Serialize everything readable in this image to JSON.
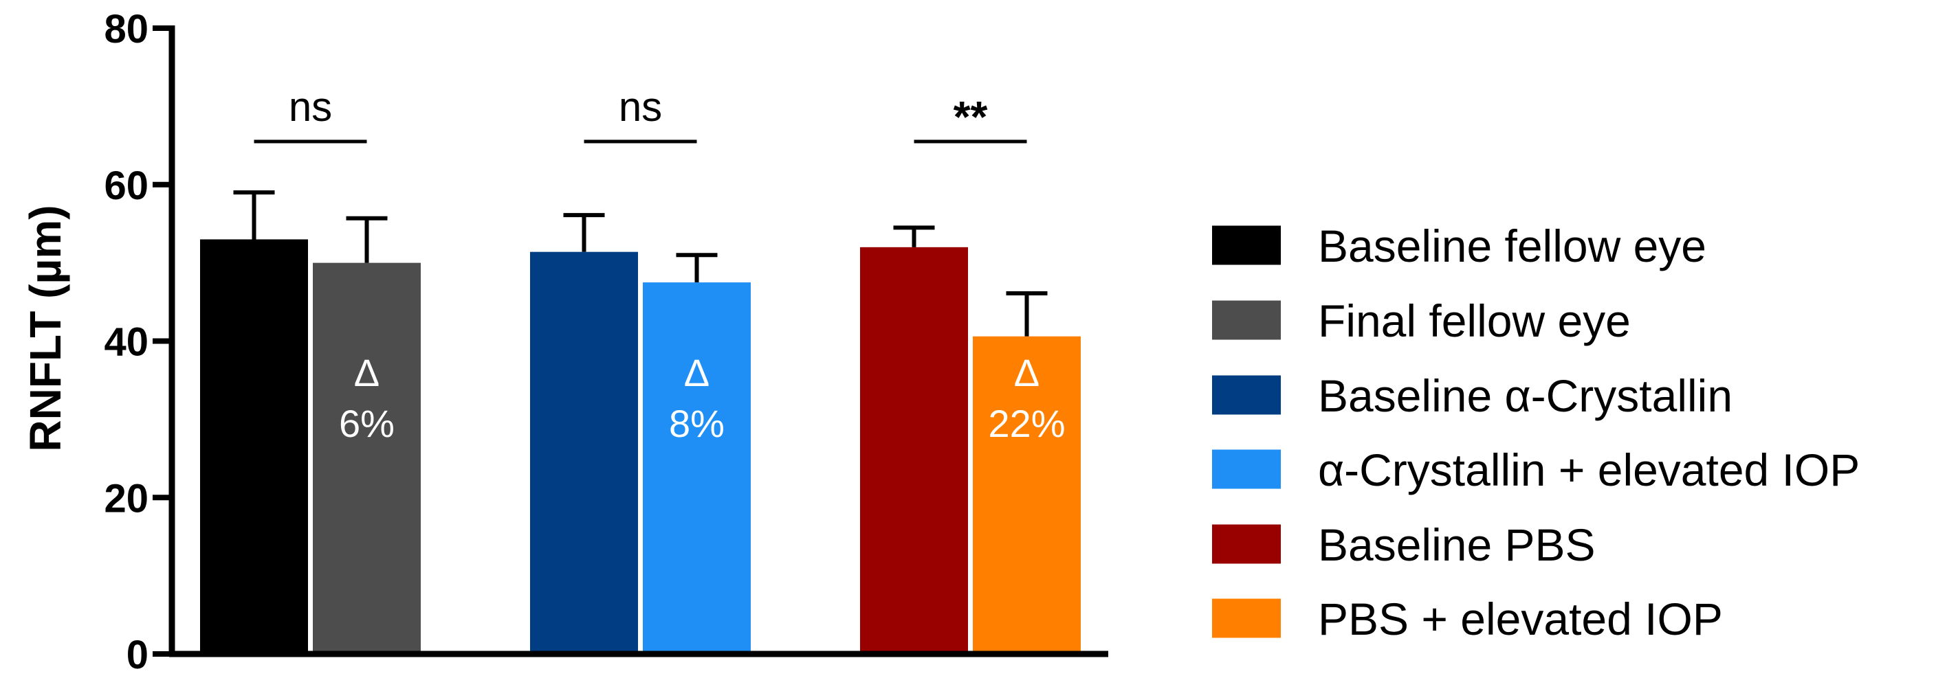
{
  "chart_data": {
    "type": "bar",
    "ylabel": "RNFLT (µm)",
    "xlabel": "",
    "ylim": [
      0,
      80
    ],
    "yticks": [
      0,
      20,
      40,
      60,
      80
    ],
    "grid": false,
    "legend_placement": "right",
    "groups": [
      {
        "bars": [
          {
            "name": "Baseline fellow eye",
            "value": 53,
            "error": 6,
            "color": "#000000"
          },
          {
            "name": "Final fellow eye",
            "value": 50,
            "error": 5.7,
            "color": "#4d4d4d"
          }
        ],
        "significance": "ns",
        "delta_symbol": "Δ",
        "delta_value": "6%"
      },
      {
        "bars": [
          {
            "name": "Baseline α-Crystallin",
            "value": 51.4,
            "error": 4.7,
            "color": "#003d82"
          },
          {
            "name": "α-Crystallin + elevated IOP",
            "value": 47.5,
            "error": 3.5,
            "color": "#1f8ff5"
          }
        ],
        "significance": "ns",
        "delta_symbol": "Δ",
        "delta_value": "8%"
      },
      {
        "bars": [
          {
            "name": "Baseline PBS",
            "value": 52,
            "error": 2.5,
            "color": "#990000"
          },
          {
            "name": "PBS + elevated IOP",
            "value": 40.6,
            "error": 5.5,
            "color": "#ff8000"
          }
        ],
        "significance": "**",
        "delta_symbol": "Δ",
        "delta_value": "22%"
      }
    ],
    "legend": [
      {
        "label": "Baseline fellow eye",
        "color": "#000000"
      },
      {
        "label": "Final fellow eye",
        "color": "#4d4d4d"
      },
      {
        "label": "Baseline α-Crystallin",
        "color": "#003d82"
      },
      {
        "label": "α-Crystallin + elevated IOP",
        "color": "#1f8ff5"
      },
      {
        "label": "Baseline PBS",
        "color": "#990000"
      },
      {
        "label": "PBS + elevated IOP",
        "color": "#ff8000"
      }
    ]
  }
}
